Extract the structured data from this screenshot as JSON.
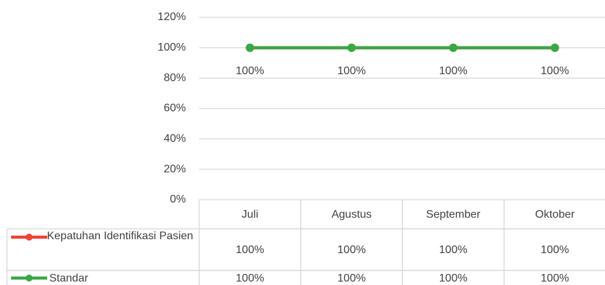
{
  "chart_data": {
    "type": "line",
    "categories": [
      "Juli",
      "Agustus",
      "September",
      "Oktober"
    ],
    "series": [
      {
        "name": "Kepatuhan Identifikasi Pasien",
        "color": "#ef4136",
        "values": [
          100,
          100,
          100,
          100
        ],
        "value_labels": [
          "100%",
          "100%",
          "100%",
          "100%"
        ]
      },
      {
        "name": "Standar",
        "color": "#3aa845",
        "values": [
          100,
          100,
          100,
          100
        ],
        "value_labels": [
          "100%",
          "100%",
          "100%",
          "100%"
        ]
      }
    ],
    "ylim": [
      0,
      120
    ],
    "yticks": [
      {
        "value": 0,
        "label": "0%"
      },
      {
        "value": 20,
        "label": "20%"
      },
      {
        "value": 40,
        "label": "40%"
      },
      {
        "value": 60,
        "label": "60%"
      },
      {
        "value": 80,
        "label": "80%"
      },
      {
        "value": 100,
        "label": "100%"
      },
      {
        "value": 120,
        "label": "120%"
      }
    ],
    "grid": true,
    "data_table": true
  }
}
